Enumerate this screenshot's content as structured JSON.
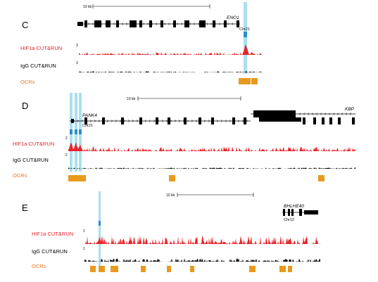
{
  "colors": {
    "hif1a": "#e8232a",
    "igg": "#000000",
    "ocr": "#e89a1f",
    "highlight": "#9ad9f0",
    "motif": "#2a8fc8"
  },
  "panels": [
    {
      "id": "C",
      "letter": "C",
      "scale_label": "10 kb",
      "genes": [
        {
          "name": "ENO1"
        }
      ],
      "chr": "Chr21",
      "hif_label": "HIF1a CUT&RUN",
      "hif_scale": "3",
      "igg_label": "IgG CUT&RUN",
      "igg_scale": "3",
      "ocr_label": "OCRs"
    },
    {
      "id": "D",
      "letter": "D",
      "scale_label": "10 kb",
      "genes": [
        {
          "name": "PANK4"
        },
        {
          "name": "KBP"
        }
      ],
      "chr": "Chr21",
      "hif_label": "HIF1a CUT&RUN",
      "hif_scale": "2",
      "igg_label": "IgG CUT&RUN",
      "igg_scale": "2",
      "ocr_label": "OCRs"
    },
    {
      "id": "E",
      "letter": "E",
      "scale_label": "10 kb",
      "genes": [
        {
          "name": "BHLHE40"
        }
      ],
      "chr": "Chr12",
      "hif_label": "HIF1a CUT&RUN",
      "hif_scale": "1",
      "igg_label": "IgG CUT&RUN",
      "igg_scale": "1",
      "ocr_label": "OCRs"
    }
  ]
}
